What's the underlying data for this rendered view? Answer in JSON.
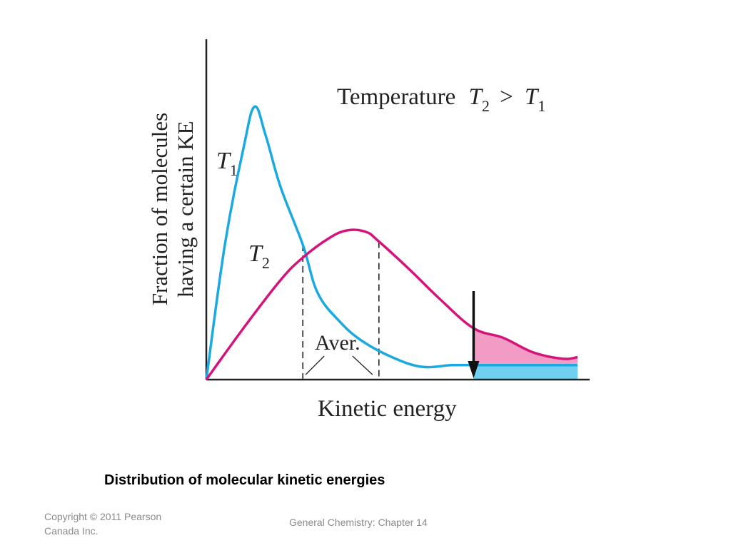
{
  "caption": "Distribution of molecular kinetic energies",
  "footer": {
    "copyright": "Copyright © 2011 Pearson Canada Inc.",
    "chapter": "General Chemistry: Chapter 14"
  },
  "chart_data": {
    "type": "line",
    "title_prefix": "Temperature",
    "title_relation": {
      "left_symbol": "T",
      "left_subscript": "2",
      "operator": ">",
      "right_symbol": "T",
      "right_subscript": "1"
    },
    "xlabel": "Kinetic energy",
    "ylabel_line1": "Fraction of molecules",
    "ylabel_line2": "having a certain KE",
    "average_label": "Aver.",
    "grid": false,
    "series": [
      {
        "name_symbol": "T",
        "name_subscript": "1",
        "color": "#1aa9e0",
        "fill_color": "#6fd0f2",
        "average": 0.26,
        "x": [
          0,
          0.05,
          0.1,
          0.13,
          0.16,
          0.2,
          0.26,
          0.3,
          0.36,
          0.42,
          0.5,
          0.58,
          0.66,
          0.72,
          0.8,
          1.0
        ],
        "y": [
          0,
          0.42,
          0.72,
          0.85,
          0.76,
          0.6,
          0.42,
          0.27,
          0.18,
          0.12,
          0.07,
          0.04,
          0.045,
          0.045,
          0.045,
          0.045
        ]
      },
      {
        "name_symbol": "T",
        "name_subscript": "2",
        "color": "#d4147a",
        "fill_color": "#f29cc5",
        "average": 0.465,
        "x": [
          0,
          0.1,
          0.2,
          0.26,
          0.33,
          0.38,
          0.43,
          0.465,
          0.55,
          0.63,
          0.72,
          0.8,
          0.88,
          0.96,
          1.0
        ],
        "y": [
          0,
          0.16,
          0.31,
          0.38,
          0.44,
          0.465,
          0.46,
          0.43,
          0.34,
          0.25,
          0.16,
          0.13,
          0.085,
          0.065,
          0.07
        ]
      }
    ],
    "threshold": {
      "x": 0.72,
      "shaded": true
    }
  }
}
